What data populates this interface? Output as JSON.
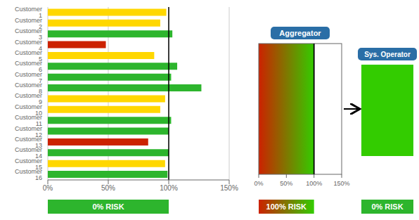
{
  "chart_data": {
    "type": "bar",
    "orientation": "horizontal",
    "categories": [
      "Customer 1",
      "Customer 2",
      "Customer 3",
      "Customer 4",
      "Customer 5",
      "Customer 6",
      "Customer 7",
      "Customer 8",
      "Customer 9",
      "Customer 10",
      "Customer 11",
      "Customer 12",
      "Customer 13",
      "Customer 14",
      "Customer 15",
      "Customer 16"
    ],
    "values": [
      98,
      93,
      103,
      48,
      88,
      107,
      102,
      127,
      97,
      93,
      102,
      100,
      83,
      100,
      97,
      99
    ],
    "colors": [
      "#FFD700",
      "#FFD700",
      "#2DB52D",
      "#CC2200",
      "#FFD700",
      "#2DB52D",
      "#2DB52D",
      "#2DB52D",
      "#FFD700",
      "#FFD700",
      "#2DB52D",
      "#2DB52D",
      "#CC2200",
      "#2DB52D",
      "#FFD700",
      "#2DB52D"
    ],
    "xlim": [
      0,
      150
    ],
    "xticks": [
      {
        "value": 0,
        "label": "0%"
      },
      {
        "value": 50,
        "label": "50%"
      },
      {
        "value": 100,
        "label": "100%"
      },
      {
        "value": 150,
        "label": "150%"
      }
    ],
    "grid": true,
    "annotations": [
      {
        "x": 100,
        "color": "#000000"
      },
      {
        "text": "Aggregator",
        "color": "#2A6EA6"
      },
      {
        "text": "Sys. Operator",
        "color": "#2A6EA6"
      },
      {
        "text": "0% RISK",
        "color": "#2DB52D"
      },
      {
        "text": "100% RISK",
        "colors": [
          "#CC2200",
          "#33CC00"
        ]
      },
      {
        "text": "0% RISK",
        "color": "#2DB52D"
      }
    ]
  }
}
